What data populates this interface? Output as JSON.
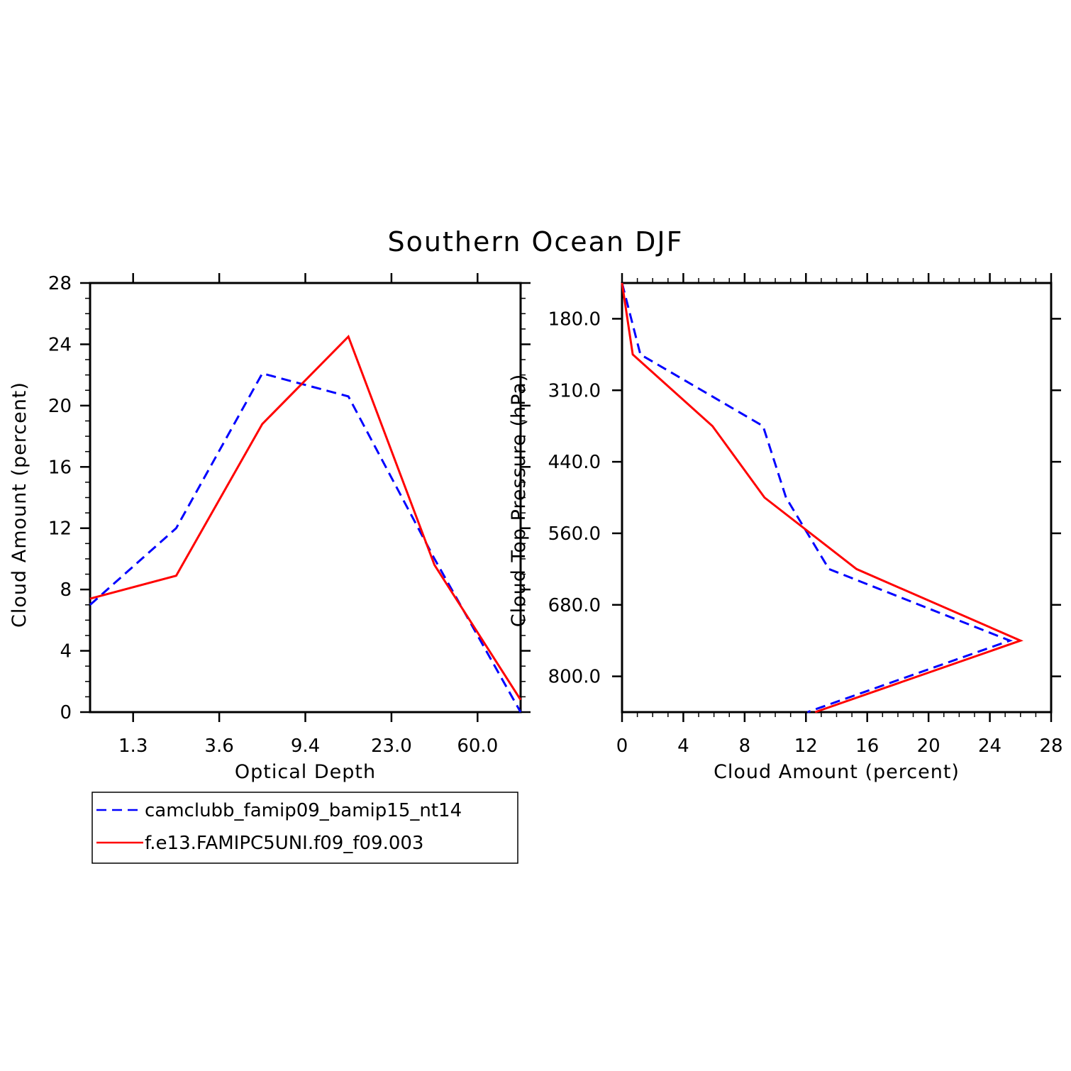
{
  "figure_title": "Southern Ocean DJF",
  "colors": {
    "series1": "#0000ff",
    "series2": "#ff0000",
    "axes": "#000000"
  },
  "legend": {
    "entries": [
      {
        "label": "camclubb_famip09_bamip15_nt14",
        "style": "dashed"
      },
      {
        "label": "f.e13.FAMIPC5UNI.f09_f09.003",
        "style": "solid"
      }
    ],
    "placement": "below-left"
  },
  "chart_data": [
    {
      "type": "line",
      "xlabel": "Optical Depth",
      "ylabel": "Cloud Amount (percent)",
      "x_tick_labels": [
        "1.3",
        "3.6",
        "9.4",
        "23.0",
        "60.0"
      ],
      "x_tick_positions": [
        1,
        2,
        3,
        4,
        5
      ],
      "xlim": [
        0.5,
        5.5
      ],
      "y_ticks": [
        0,
        4,
        8,
        12,
        16,
        20,
        24,
        28
      ],
      "ylim": [
        0,
        28
      ],
      "x": [
        0.5,
        1.5,
        2.5,
        3.5,
        4.5,
        5.5
      ],
      "series": [
        {
          "name": "camclubb_famip09_bamip15_nt14",
          "values": [
            7.0,
            12.0,
            22.1,
            20.6,
            10.0,
            0.0
          ]
        },
        {
          "name": "f.e13.FAMIPC5UNI.f09_f09.003",
          "values": [
            7.4,
            8.9,
            18.8,
            24.5,
            9.6,
            0.8
          ]
        }
      ]
    },
    {
      "type": "line",
      "orientation": "horizontal",
      "xlabel": "Cloud Amount (percent)",
      "ylabel": "Cloud Top Pressure (hPa)",
      "x_ticks": [
        0,
        4,
        8,
        12,
        16,
        20,
        24,
        28
      ],
      "xlim": [
        0,
        28
      ],
      "y_tick_labels": [
        "180.0",
        "310.0",
        "440.0",
        "560.0",
        "680.0",
        "800.0"
      ],
      "y_tick_positions": [
        1,
        2,
        3,
        4,
        5,
        6
      ],
      "ylim": [
        0.5,
        6.5
      ],
      "y": [
        0.5,
        1.5,
        2.5,
        3.5,
        4.5,
        5.5,
        6.5
      ],
      "series": [
        {
          "name": "camclubb_famip09_bamip15_nt14",
          "values": [
            0.0,
            1.2,
            9.2,
            10.7,
            13.5,
            25.3,
            12.1
          ]
        },
        {
          "name": "f.e13.FAMIPC5UNI.f09_f09.003",
          "values": [
            0.0,
            0.7,
            5.9,
            9.3,
            15.3,
            26.0,
            12.6
          ]
        }
      ]
    }
  ]
}
